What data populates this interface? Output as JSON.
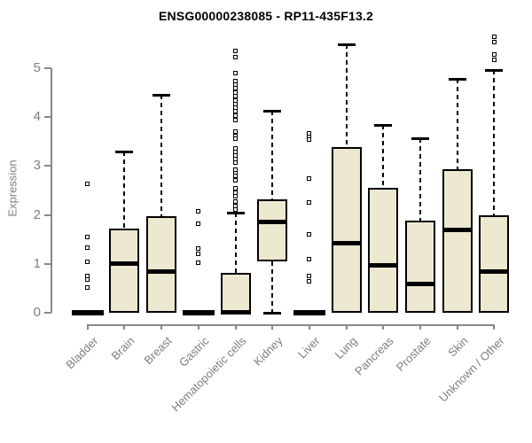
{
  "chart_data": {
    "type": "boxplot",
    "title": "ENSG00000238085 - RP11-435F13.2",
    "ylabel": "Expression",
    "xlabel": "",
    "yticks": [
      0,
      1,
      2,
      3,
      4,
      5
    ],
    "ylim": [
      0,
      5.7
    ],
    "grid": false,
    "legend": "none",
    "colors": {
      "box_fill": "#ede8d0",
      "box_stroke": "#000000",
      "axis": "#888888",
      "tick_label": "#7e7e7e",
      "title": "#000000"
    },
    "categories": [
      "Bladder",
      "Brain",
      "Breast",
      "Gastric",
      "Hematopoietic cells",
      "Kidney",
      "Liver",
      "Lung",
      "Pancreas",
      "Prostate",
      "Skin",
      "Unknown / Other"
    ],
    "series": [
      {
        "label": "Bladder",
        "collapsed": true,
        "q1": 0,
        "median": 0,
        "q3": 0,
        "whisker_low": 0,
        "whisker_high": 0,
        "outliers": [
          2.63,
          1.56,
          1.34,
          1.05,
          0.75,
          0.68,
          0.52
        ]
      },
      {
        "label": "Brain",
        "collapsed": false,
        "q1": 0,
        "median": 1.0,
        "q3": 1.72,
        "whisker_low": 0,
        "whisker_high": 3.3,
        "outliers": []
      },
      {
        "label": "Breast",
        "collapsed": false,
        "q1": 0,
        "median": 0.84,
        "q3": 1.97,
        "whisker_low": 0,
        "whisker_high": 4.45,
        "outliers": []
      },
      {
        "label": "Gastric",
        "collapsed": true,
        "q1": 0,
        "median": 0,
        "q3": 0,
        "whisker_low": 0,
        "whisker_high": 0,
        "outliers": [
          2.08,
          1.82,
          1.31,
          1.21,
          1.03
        ]
      },
      {
        "label": "Hematopoietic cells",
        "collapsed": false,
        "q1": 0,
        "median": 0.02,
        "q3": 0.81,
        "whisker_low": 0,
        "whisker_high": 2.05,
        "outliers": [
          5.35,
          5.22,
          4.89,
          4.74,
          4.66,
          4.58,
          4.5,
          4.42,
          4.34,
          4.27,
          4.19,
          4.11,
          4.02,
          3.93,
          3.7,
          3.62,
          3.56,
          3.35,
          3.28,
          3.21,
          3.14,
          3.07,
          2.93,
          2.86,
          2.79,
          2.71,
          2.54,
          2.46,
          2.39,
          2.27,
          2.19,
          2.11
        ]
      },
      {
        "label": "Kidney",
        "collapsed": false,
        "q1": 1.05,
        "median": 1.85,
        "q3": 2.32,
        "whisker_low": 0,
        "whisker_high": 4.12,
        "outliers": []
      },
      {
        "label": "Liver",
        "collapsed": true,
        "q1": 0,
        "median": 0,
        "q3": 0,
        "whisker_low": 0,
        "whisker_high": 0,
        "outliers": [
          3.66,
          3.6,
          3.54,
          2.75,
          2.25,
          1.6,
          1.1,
          0.76,
          0.64
        ]
      },
      {
        "label": "Lung",
        "collapsed": false,
        "q1": 0,
        "median": 1.43,
        "q3": 3.39,
        "whisker_low": 0,
        "whisker_high": 5.49,
        "outliers": []
      },
      {
        "label": "Pancreas",
        "collapsed": false,
        "q1": 0,
        "median": 0.97,
        "q3": 2.56,
        "whisker_low": 0,
        "whisker_high": 3.83,
        "outliers": []
      },
      {
        "label": "Prostate",
        "collapsed": false,
        "q1": 0,
        "median": 0.6,
        "q3": 1.89,
        "whisker_low": 0,
        "whisker_high": 3.56,
        "outliers": []
      },
      {
        "label": "Skin",
        "collapsed": false,
        "q1": 0,
        "median": 1.69,
        "q3": 2.94,
        "whisker_low": 0,
        "whisker_high": 4.77,
        "outliers": []
      },
      {
        "label": "Unknown / Other",
        "collapsed": false,
        "q1": 0,
        "median": 0.84,
        "q3": 2.0,
        "whisker_low": 0,
        "whisker_high": 4.95,
        "outliers": [
          5.64,
          5.52,
          5.28,
          5.16
        ]
      }
    ]
  }
}
